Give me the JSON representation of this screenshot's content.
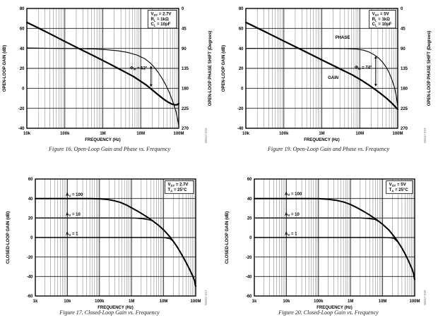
{
  "page": {
    "background": "#ffffff",
    "ink": "#000000",
    "grid_color": "#1a1a1a",
    "code_color": "#7a7a7a"
  },
  "chart_data": [
    {
      "type": "line",
      "figure": "Figure 16",
      "caption": "Figure 16. Open-Loop Gain and Phase vs. Frequency",
      "code": "06557-016",
      "xlabel": "FREQUENCY (Hz)",
      "x_log_range": [
        4,
        8
      ],
      "x_tick_labels": [
        "10k",
        "100k",
        "1M",
        "10M",
        "100M"
      ],
      "y_left": {
        "label": "OPEN-LOOP GAIN (dB)",
        "min": -40,
        "max": 80,
        "tick_step": 20
      },
      "y_right": {
        "label": "OPEN-LOOP PHASE SHIFT (Degrees)",
        "min": 0,
        "max": 270,
        "tick_step": 45
      },
      "conditions": [
        {
          "pre": "V",
          "sub": "SY",
          "post": " = 2.7V"
        },
        {
          "pre": "R",
          "sub": "L",
          "post": " = 1kΩ"
        },
        {
          "pre": "C",
          "sub": "L",
          "post": " = 10pF"
        }
      ],
      "series": [
        {
          "name": "gain",
          "axis": "left",
          "width": 2.2,
          "points": [
            [
              4,
              66
            ],
            [
              4.3,
              60.5
            ],
            [
              4.6,
              54.8
            ],
            [
              5,
              47
            ],
            [
              5.4,
              39.3
            ],
            [
              5.8,
              31.8
            ],
            [
              6.2,
              24
            ],
            [
              6.5,
              18
            ],
            [
              6.8,
              12
            ],
            [
              7.0,
              7
            ],
            [
              7.15,
              3.2
            ],
            [
              7.3,
              -1.5
            ],
            [
              7.45,
              -6.2
            ],
            [
              7.6,
              -10.8
            ],
            [
              7.72,
              -13.8
            ],
            [
              7.82,
              -15.8
            ],
            [
              7.9,
              -16.6
            ],
            [
              7.96,
              -16.4
            ],
            [
              8,
              -15.3
            ]
          ]
        },
        {
          "name": "phase",
          "axis": "right",
          "width": 1.1,
          "points": [
            [
              4,
              89
            ],
            [
              4.8,
              90
            ],
            [
              5.4,
              90.6
            ],
            [
              5.8,
              91.5
            ],
            [
              6.1,
              93
            ],
            [
              6.4,
              95.5
            ],
            [
              6.65,
              99
            ],
            [
              6.9,
              105
            ],
            [
              7.1,
              113
            ],
            [
              7.25,
              123
            ],
            [
              7.35,
              132
            ],
            [
              7.45,
              143
            ],
            [
              7.55,
              156
            ],
            [
              7.65,
              171
            ],
            [
              7.75,
              189
            ],
            [
              7.85,
              211
            ],
            [
              7.93,
              233
            ],
            [
              8,
              263
            ]
          ]
        }
      ],
      "series_labels": [],
      "phase_margin": {
        "parts": {
          "pre": "Φ",
          "sub": "M",
          "post": " = 52°"
        },
        "x_log": 7.27,
        "deg_top": 129,
        "deg_bot": 177,
        "label_x_log": 7.17,
        "label_db": 20.5
      }
    },
    {
      "type": "line",
      "figure": "Figure 19",
      "caption": "Figure 19. Open-Loop Gain and Phase vs. Frequency",
      "code": "06557-019",
      "xlabel": "FREQUENCY (Hz)",
      "x_log_range": [
        4,
        8
      ],
      "x_tick_labels": [
        "10k",
        "100k",
        "1M",
        "10M",
        "100M"
      ],
      "y_left": {
        "label": "OPEN-LOOP GAIN (dB)",
        "min": -40,
        "max": 80,
        "tick_step": 20
      },
      "y_right": {
        "label": "OPEN-LOOP PHASE SHIFT (Degrees)",
        "min": 0,
        "max": 270,
        "tick_step": 45
      },
      "conditions": [
        {
          "pre": "V",
          "sub": "SY",
          "post": " = 5V"
        },
        {
          "pre": "R",
          "sub": "L",
          "post": " = 1kΩ"
        },
        {
          "pre": "C",
          "sub": "L",
          "post": " = 10pF"
        }
      ],
      "series": [
        {
          "name": "gain",
          "axis": "left",
          "width": 2.2,
          "points": [
            [
              4,
              66
            ],
            [
              4.5,
              56.8
            ],
            [
              5,
              47.3
            ],
            [
              5.5,
              38
            ],
            [
              6,
              28.5
            ],
            [
              6.4,
              21
            ],
            [
              6.8,
              13.5
            ],
            [
              7.05,
              8
            ],
            [
              7.25,
              3
            ],
            [
              7.4,
              -1
            ],
            [
              7.55,
              -5.3
            ],
            [
              7.7,
              -9.8
            ],
            [
              7.85,
              -15
            ],
            [
              8,
              -21
            ]
          ]
        },
        {
          "name": "phase",
          "axis": "right",
          "width": 1.1,
          "points": [
            [
              4,
              90
            ],
            [
              6.2,
              90
            ],
            [
              6.6,
              90.4
            ],
            [
              6.9,
              91.5
            ],
            [
              7.1,
              94
            ],
            [
              7.25,
              98.5
            ],
            [
              7.38,
              104.5
            ],
            [
              7.5,
              112
            ],
            [
              7.6,
              121
            ],
            [
              7.7,
              133
            ],
            [
              7.78,
              146
            ],
            [
              7.85,
              161
            ],
            [
              7.91,
              177
            ],
            [
              7.96,
              196
            ],
            [
              8,
              220
            ]
          ]
        }
      ],
      "series_labels": [
        {
          "text": "PHASE",
          "x_log": 6.55,
          "db": 51,
          "anchor": "middle"
        },
        {
          "text": "GAIN",
          "x_log": 6.3,
          "db": 11,
          "anchor": "middle"
        }
      ],
      "phase_margin": {
        "parts": {
          "pre": "Φ",
          "sub": "M",
          "post": " = 74°"
        },
        "x_log": 7.42,
        "deg_top": 107,
        "deg_bot": 176,
        "label_x_log": 7.32,
        "label_db": 21
      }
    },
    {
      "type": "line",
      "figure": "Figure 17",
      "caption": "Figure 17. Closed-Loop Gain vs. Frequency",
      "code": "06557-017",
      "xlabel": "FREQUENCY (Hz)",
      "x_log_range": [
        3,
        8
      ],
      "x_tick_labels": [
        "1k",
        "10k",
        "100k",
        "1M",
        "10M",
        "100M"
      ],
      "y_left": {
        "label": "CLOSED-LOOP GAIN (dB)",
        "min": -60,
        "max": 60,
        "tick_step": 20
      },
      "conditions": [
        {
          "pre": "V",
          "sub": "SY",
          "post": " = 2.7V"
        },
        {
          "pre": "T",
          "sub": "A",
          "post": " = 25°C"
        }
      ],
      "series": [
        {
          "name": "av100",
          "axis": "left",
          "width": 2.0,
          "points": [
            [
              3,
              40
            ],
            [
              4.7,
              40
            ],
            [
              5.0,
              39.7
            ],
            [
              5.25,
              39
            ],
            [
              5.45,
              37.8
            ],
            [
              5.65,
              36
            ],
            [
              5.85,
              33.2
            ],
            [
              6.05,
              29.6
            ],
            [
              6.25,
              25.8
            ],
            [
              6.45,
              21.8
            ],
            [
              6.65,
              17.3
            ],
            [
              6.85,
              12.3
            ],
            [
              7.0,
              7.8
            ],
            [
              7.1,
              4.3
            ],
            [
              7.2,
              0.5
            ],
            [
              7.3,
              -3.8
            ],
            [
              7.4,
              -8.5
            ],
            [
              7.5,
              -13.8
            ],
            [
              7.6,
              -19.5
            ],
            [
              7.7,
              -25.6
            ],
            [
              7.8,
              -32
            ],
            [
              7.9,
              -39
            ],
            [
              7.96,
              -44
            ],
            [
              8,
              -50
            ]
          ]
        },
        {
          "name": "av10",
          "axis": "left",
          "width": 1.4,
          "points": [
            [
              3,
              20
            ],
            [
              5.9,
              20
            ],
            [
              6.15,
              19.8
            ],
            [
              6.35,
              19.2
            ],
            [
              6.5,
              18.4
            ],
            [
              6.65,
              17.3
            ],
            [
              6.85,
              12.3
            ],
            [
              7.0,
              7.8
            ],
            [
              7.1,
              4.3
            ],
            [
              7.2,
              0.5
            ],
            [
              7.3,
              -3.8
            ],
            [
              7.4,
              -8.5
            ],
            [
              7.5,
              -13.8
            ],
            [
              7.6,
              -19.5
            ],
            [
              7.7,
              -25.6
            ],
            [
              7.8,
              -32
            ],
            [
              7.9,
              -39
            ],
            [
              7.96,
              -44
            ],
            [
              8,
              -50
            ]
          ]
        },
        {
          "name": "av1",
          "axis": "left",
          "width": 1.4,
          "points": [
            [
              3,
              0
            ],
            [
              6.9,
              0
            ],
            [
              7.05,
              -0.3
            ],
            [
              7.2,
              -1.2
            ],
            [
              7.3,
              -3.8
            ],
            [
              7.4,
              -8.5
            ],
            [
              7.5,
              -13.8
            ],
            [
              7.6,
              -19.5
            ],
            [
              7.7,
              -25.6
            ],
            [
              7.8,
              -32
            ],
            [
              7.9,
              -39
            ],
            [
              7.96,
              -44
            ],
            [
              8,
              -50
            ]
          ]
        }
      ],
      "series_labels": [
        {
          "pre": "A",
          "sub": "V",
          "post": " = 100",
          "x_log": 3.95,
          "db": 44,
          "anchor": "start"
        },
        {
          "pre": "A",
          "sub": "V",
          "post": " = 10",
          "x_log": 3.95,
          "db": 24,
          "anchor": "start"
        },
        {
          "pre": "A",
          "sub": "V",
          "post": " = 1",
          "x_log": 3.95,
          "db": 4,
          "anchor": "start"
        }
      ]
    },
    {
      "type": "line",
      "figure": "Figure 20",
      "caption": "Figure 20. Closed-Loop Gain vs. Frequency",
      "code": "06557-020",
      "xlabel": "FREQUENCY (Hz)",
      "x_log_range": [
        3,
        8
      ],
      "x_tick_labels": [
        "1k",
        "10k",
        "100k",
        "1M",
        "10M",
        "100M"
      ],
      "y_left": {
        "label": "CLOSED-LOOP GAIN (dB)",
        "min": -60,
        "max": 60,
        "tick_step": 20
      },
      "conditions": [
        {
          "pre": "V",
          "sub": "SY",
          "post": " = 5V"
        },
        {
          "pre": "T",
          "sub": "A",
          "post": " = 25°C"
        }
      ],
      "series": [
        {
          "name": "av100",
          "axis": "left",
          "width": 2.0,
          "points": [
            [
              3,
              40
            ],
            [
              4.7,
              40
            ],
            [
              5.0,
              39.8
            ],
            [
              5.3,
              39.2
            ],
            [
              5.55,
              38.2
            ],
            [
              5.8,
              36.3
            ],
            [
              6.0,
              33.8
            ],
            [
              6.2,
              30.6
            ],
            [
              6.4,
              27
            ],
            [
              6.6,
              23
            ],
            [
              6.8,
              18.6
            ],
            [
              7.0,
              13.6
            ],
            [
              7.2,
              7.5
            ],
            [
              7.3,
              3.5
            ],
            [
              7.4,
              -0.8
            ],
            [
              7.5,
              -5.5
            ],
            [
              7.6,
              -10.8
            ],
            [
              7.7,
              -16.8
            ],
            [
              7.8,
              -23.5
            ],
            [
              7.9,
              -31
            ],
            [
              7.96,
              -36.5
            ],
            [
              8,
              -43
            ]
          ]
        },
        {
          "name": "av10",
          "axis": "left",
          "width": 1.4,
          "points": [
            [
              3,
              20
            ],
            [
              6.3,
              20
            ],
            [
              6.55,
              19.5
            ],
            [
              6.75,
              18.6
            ],
            [
              6.9,
              16.3
            ],
            [
              7.0,
              13.6
            ],
            [
              7.2,
              7.5
            ],
            [
              7.3,
              3.5
            ],
            [
              7.4,
              -0.8
            ],
            [
              7.5,
              -5.5
            ],
            [
              7.6,
              -10.8
            ],
            [
              7.7,
              -16.8
            ],
            [
              7.8,
              -23.5
            ],
            [
              7.9,
              -31
            ],
            [
              7.96,
              -36.5
            ],
            [
              8,
              -43
            ]
          ]
        },
        {
          "name": "av1",
          "axis": "left",
          "width": 1.4,
          "points": [
            [
              3,
              0
            ],
            [
              7.0,
              0
            ],
            [
              7.2,
              -0.2
            ],
            [
              7.35,
              -0.8
            ],
            [
              7.5,
              -5.5
            ],
            [
              7.6,
              -10.8
            ],
            [
              7.7,
              -16.8
            ],
            [
              7.8,
              -23.5
            ],
            [
              7.9,
              -31
            ],
            [
              7.96,
              -36.5
            ],
            [
              8,
              -43
            ]
          ]
        }
      ],
      "series_labels": [
        {
          "pre": "A",
          "sub": "V",
          "post": " = 100",
          "x_log": 3.95,
          "db": 45,
          "anchor": "start"
        },
        {
          "pre": "A",
          "sub": "V",
          "post": " = 10",
          "x_log": 3.95,
          "db": 24,
          "anchor": "start"
        },
        {
          "pre": "A",
          "sub": "V",
          "post": " = 1",
          "x_log": 3.95,
          "db": 4,
          "anchor": "start"
        }
      ]
    }
  ]
}
